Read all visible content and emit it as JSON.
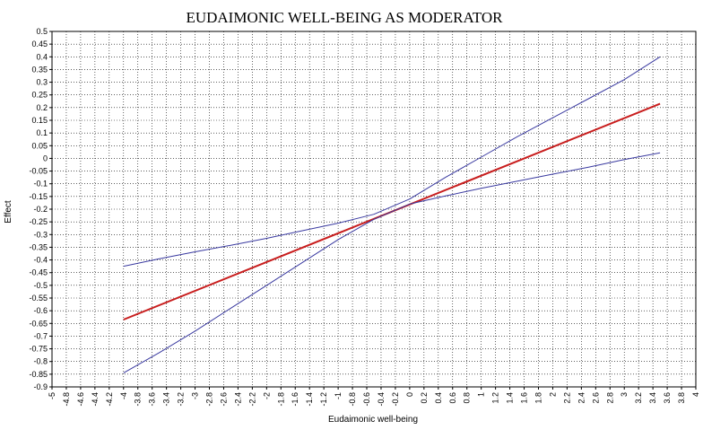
{
  "chart_data": {
    "type": "line",
    "title": "EUDAIMONIC WELL-BEING AS MODERATOR",
    "xlabel": "Eudaimonic well-being",
    "ylabel": "Effect",
    "xlim": [
      -5,
      4
    ],
    "ylim": [
      -0.9,
      0.5
    ],
    "grid": true,
    "legend": "none",
    "x_ticks": [
      "-5",
      "-4.8",
      "-4.6",
      "-4.4",
      "-4.2",
      "-4",
      "-3.8",
      "-3.6",
      "-3.4",
      "-3.2",
      "-3",
      "-2.8",
      "-2.6",
      "-2.4",
      "-2.2",
      "-2",
      "-1.8",
      "-1.6",
      "-1.4",
      "-1.2",
      "-1",
      "-0.8",
      "-0.6",
      "-0.4",
      "-0.2",
      "0",
      "0.2",
      "0.4",
      "0.6",
      "0.8",
      "1",
      "1.2",
      "1.4",
      "1.6",
      "1.8",
      "2",
      "2.2",
      "2.4",
      "2.6",
      "2.8",
      "3",
      "3.2",
      "3.4",
      "3.6",
      "3.8",
      "4"
    ],
    "y_ticks": [
      "0.5",
      "0.45",
      "0.4",
      "0.35",
      "0.3",
      "0.25",
      "0.2",
      "0.15",
      "0.1",
      "0.05",
      "0",
      "-0.05",
      "-0.1",
      "-0.15",
      "-0.2",
      "-0.25",
      "-0.3",
      "-0.35",
      "-0.4",
      "-0.45",
      "-0.5",
      "-0.55",
      "-0.6",
      "-0.65",
      "-0.7",
      "-0.75",
      "-0.8",
      "-0.85",
      "-0.9"
    ],
    "series": [
      {
        "color": "#c81e1e",
        "x": [
          -4,
          3.5
        ],
        "y": [
          -0.635,
          0.215
        ]
      },
      {
        "color": "#3a3aa0",
        "x": [
          -4,
          -3.5,
          -3,
          -2.5,
          -2,
          -1.5,
          -1,
          -0.5,
          0,
          0.5,
          1,
          1.5,
          2,
          2.5,
          3,
          3.5
        ],
        "y": [
          -0.425,
          -0.395,
          -0.368,
          -0.342,
          -0.315,
          -0.285,
          -0.255,
          -0.22,
          -0.16,
          -0.075,
          0.005,
          0.085,
          0.16,
          0.235,
          0.31,
          0.4
        ]
      },
      {
        "color": "#3a3aa0",
        "x": [
          -4,
          -3.5,
          -3,
          -2.5,
          -2,
          -1.5,
          -1,
          -0.5,
          0,
          0.5,
          1,
          1.5,
          2,
          2.5,
          3,
          3.5
        ],
        "y": [
          -0.845,
          -0.765,
          -0.68,
          -0.59,
          -0.5,
          -0.41,
          -0.32,
          -0.24,
          -0.18,
          -0.148,
          -0.118,
          -0.09,
          -0.062,
          -0.035,
          -0.005,
          0.022
        ]
      }
    ]
  }
}
